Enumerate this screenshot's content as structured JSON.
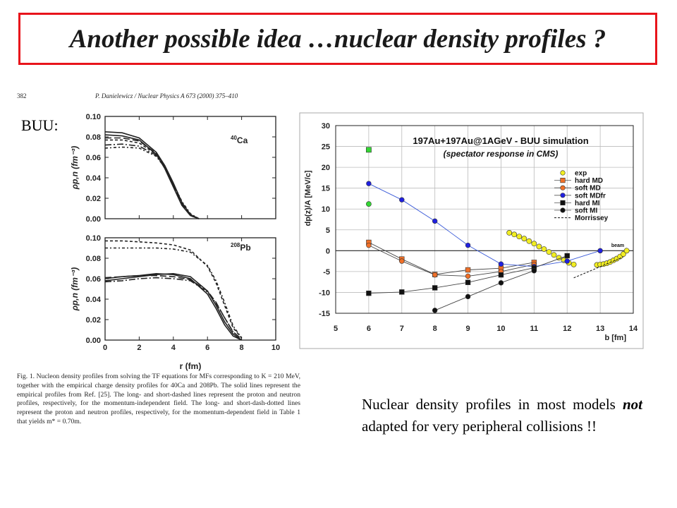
{
  "slide": {
    "title": "Another possible idea …nuclear density profiles ?",
    "buu_label": "BUU:",
    "note_before": "Nuclear density profiles in most models ",
    "note_emph": "not",
    "note_after": " adapted for very peripheral collisions !!"
  },
  "paper": {
    "page_number": "382",
    "journal_header": "P. Danielewicz / Nuclear Physics A 673 (2000) 375–410",
    "caption": "Fig. 1. Nucleon density profiles from solving the TF equations for MFs corresponding to K = 210 MeV, together with the empirical charge density profiles for 40Ca and 208Pb. The solid lines represent the empirical profiles from Ref. [25]. The long- and short-dashed lines represent the proton and neutron profiles, respectively, for the momentum-independent field. The long- and short-dash-dotted lines represent the proton and neutron profiles, respectively, for the momentum-dependent field in Table 1 that yields m* = 0.70m."
  },
  "chart_data": [
    {
      "type": "line",
      "panel": "top",
      "annotation": "40Ca",
      "xlabel": "r (fm)",
      "ylabel": "ρp,n (fm⁻³)",
      "xlim": [
        0,
        10
      ],
      "ylim": [
        0,
        0.1
      ],
      "x_ticks": [
        "0",
        "2",
        "4",
        "6",
        "8",
        "10"
      ],
      "y_ticks": [
        "0.00",
        "0.02",
        "0.04",
        "0.06",
        "0.08",
        "0.10"
      ],
      "series": [
        {
          "style": "solid",
          "x": [
            0,
            1,
            2,
            3,
            3.5,
            4,
            4.5,
            5,
            5.5
          ],
          "y": [
            0.085,
            0.084,
            0.079,
            0.065,
            0.052,
            0.035,
            0.016,
            0.004,
            0
          ]
        },
        {
          "style": "solid",
          "x": [
            0,
            1,
            2,
            3,
            3.5,
            4,
            4.5,
            5,
            5.5
          ],
          "y": [
            0.082,
            0.081,
            0.077,
            0.063,
            0.049,
            0.031,
            0.013,
            0.003,
            0
          ]
        },
        {
          "style": "long-dash",
          "x": [
            0,
            1,
            2,
            3,
            3.5,
            4,
            4.5,
            5,
            5.5
          ],
          "y": [
            0.079,
            0.079,
            0.076,
            0.064,
            0.051,
            0.033,
            0.014,
            0.003,
            0
          ]
        },
        {
          "style": "short-dash",
          "x": [
            0,
            1,
            2,
            3,
            3.5,
            4,
            4.5,
            5,
            5.5
          ],
          "y": [
            0.077,
            0.077,
            0.074,
            0.063,
            0.051,
            0.034,
            0.016,
            0.004,
            0
          ]
        },
        {
          "style": "long-dash-dot",
          "x": [
            0,
            1,
            2,
            3,
            3.5,
            4,
            4.5,
            5,
            5.5
          ],
          "y": [
            0.072,
            0.073,
            0.071,
            0.062,
            0.05,
            0.033,
            0.015,
            0.004,
            0
          ]
        },
        {
          "style": "short-dash-dot",
          "x": [
            0,
            1,
            2,
            3,
            3.5,
            4,
            4.5,
            5,
            5.5
          ],
          "y": [
            0.069,
            0.07,
            0.069,
            0.061,
            0.05,
            0.034,
            0.017,
            0.005,
            0
          ]
        }
      ]
    },
    {
      "type": "line",
      "panel": "bottom",
      "annotation": "208Pb",
      "xlabel": "r (fm)",
      "ylabel": "ρp,n (fm⁻³)",
      "xlim": [
        0,
        10
      ],
      "ylim": [
        0,
        0.1
      ],
      "x_ticks": [
        "0",
        "2",
        "4",
        "6",
        "8",
        "10"
      ],
      "y_ticks": [
        "0.00",
        "0.02",
        "0.04",
        "0.06",
        "0.08",
        "0.10"
      ],
      "series": [
        {
          "style": "solid",
          "x": [
            0,
            1,
            2,
            3,
            4,
            5,
            6,
            6.5,
            7,
            7.5,
            8
          ],
          "y": [
            0.058,
            0.06,
            0.062,
            0.064,
            0.065,
            0.062,
            0.048,
            0.034,
            0.018,
            0.006,
            0
          ]
        },
        {
          "style": "solid",
          "x": [
            0,
            1,
            2,
            3,
            4,
            5,
            6,
            6.5,
            7,
            7.5,
            8
          ],
          "y": [
            0.06,
            0.062,
            0.063,
            0.065,
            0.064,
            0.06,
            0.045,
            0.031,
            0.015,
            0.004,
            0
          ]
        },
        {
          "style": "long-dash",
          "x": [
            0,
            1,
            2,
            3,
            4,
            5,
            6,
            6.5,
            7,
            7.5,
            8
          ],
          "y": [
            0.061,
            0.062,
            0.063,
            0.063,
            0.062,
            0.059,
            0.048,
            0.037,
            0.022,
            0.008,
            0.001
          ]
        },
        {
          "style": "short-dash",
          "x": [
            0,
            1,
            2,
            3,
            4,
            5,
            6,
            6.5,
            7,
            7.5,
            8
          ],
          "y": [
            0.097,
            0.097,
            0.096,
            0.095,
            0.093,
            0.088,
            0.072,
            0.056,
            0.034,
            0.012,
            0.002
          ]
        },
        {
          "style": "long-dash-dot",
          "x": [
            0,
            1,
            2,
            3,
            4,
            5,
            6,
            6.5,
            7,
            7.5,
            8
          ],
          "y": [
            0.057,
            0.058,
            0.06,
            0.061,
            0.06,
            0.058,
            0.047,
            0.036,
            0.022,
            0.008,
            0.001
          ]
        },
        {
          "style": "short-dash-dot",
          "x": [
            0,
            1,
            2,
            3,
            4,
            5,
            6,
            6.5,
            7,
            7.5,
            8
          ],
          "y": [
            0.09,
            0.09,
            0.09,
            0.09,
            0.089,
            0.086,
            0.073,
            0.058,
            0.037,
            0.014,
            0.002
          ]
        }
      ]
    },
    {
      "type": "line",
      "title": "197Au+197Au@1AGeV - BUU simulation",
      "subtitle": "(spectator response in CMS)",
      "xlabel": "b [fm]",
      "ylabel": "dp(z)/A [MeV/c]",
      "xlim": [
        5,
        14
      ],
      "ylim": [
        -15,
        30
      ],
      "x_ticks": [
        "5",
        "6",
        "7",
        "8",
        "9",
        "10",
        "11",
        "12",
        "13",
        "14"
      ],
      "y_ticks": [
        "-15",
        "-10",
        "-5",
        "0",
        "5",
        "10",
        "15",
        "20",
        "25",
        "30"
      ],
      "grid": true,
      "legend_position": "right",
      "annotation": "beam",
      "series": [
        {
          "name": "exp",
          "color": "#f2ee22",
          "marker": "circle",
          "x": [
            10.25,
            10.4,
            10.55,
            10.7,
            10.85,
            11.0,
            11.15,
            11.3,
            11.45,
            11.6,
            11.75,
            11.9,
            12.05,
            12.2,
            12.9,
            13.0,
            13.1,
            13.2,
            13.3,
            13.4,
            13.5,
            13.6,
            13.7,
            13.8
          ],
          "y": [
            4.3,
            3.9,
            3.4,
            2.9,
            2.3,
            1.7,
            1.0,
            0.4,
            -0.3,
            -1.0,
            -1.7,
            -2.3,
            -2.9,
            -3.3,
            -3.4,
            -3.3,
            -3.2,
            -3.0,
            -2.7,
            -2.3,
            -1.9,
            -1.4,
            -0.8,
            0.0
          ]
        },
        {
          "name": "hard MD",
          "color": "#f07028",
          "marker": "square",
          "x": [
            6,
            7,
            8,
            9,
            10,
            11
          ],
          "y": [
            2,
            -2,
            -5.7,
            -4.6,
            -4.2,
            -2.8
          ]
        },
        {
          "name": "soft MD",
          "color": "#f07028",
          "marker": "circle",
          "x": [
            6,
            7,
            8,
            9,
            10,
            11
          ],
          "y": [
            1.3,
            -2.5,
            -5.8,
            -6.1,
            -5.0,
            -3.3
          ]
        },
        {
          "name": "soft MDfr",
          "color": "#2020e0",
          "marker": "circle",
          "x": [
            6,
            7,
            8,
            9,
            10,
            11,
            12,
            13
          ],
          "y": [
            16.1,
            12.2,
            7.1,
            1.3,
            -3.2,
            -3.8,
            -2.5,
            0
          ]
        },
        {
          "name": "hard MI",
          "color": "#111111",
          "marker": "square",
          "x": [
            6,
            7,
            8,
            9,
            10,
            11,
            12
          ],
          "y": [
            -10.2,
            -9.9,
            -8.9,
            -7.6,
            -5.8,
            -4.1,
            -1.2
          ]
        },
        {
          "name": "soft MI",
          "color": "#111111",
          "marker": "circle",
          "x": [
            8,
            9,
            10,
            11
          ],
          "y": [
            -14.3,
            -11.0,
            -7.7,
            -4.8
          ]
        },
        {
          "name": "Morrissey",
          "color": "#111111",
          "style": "dashed",
          "x": [
            12.2,
            13.7
          ],
          "y": [
            -6.5,
            -1.5
          ]
        }
      ],
      "extra_points": [
        {
          "x": 6,
          "y": 24.2,
          "color": "#33d633",
          "marker": "square"
        },
        {
          "x": 6,
          "y": 11.2,
          "color": "#33d633",
          "marker": "circle"
        }
      ]
    }
  ]
}
